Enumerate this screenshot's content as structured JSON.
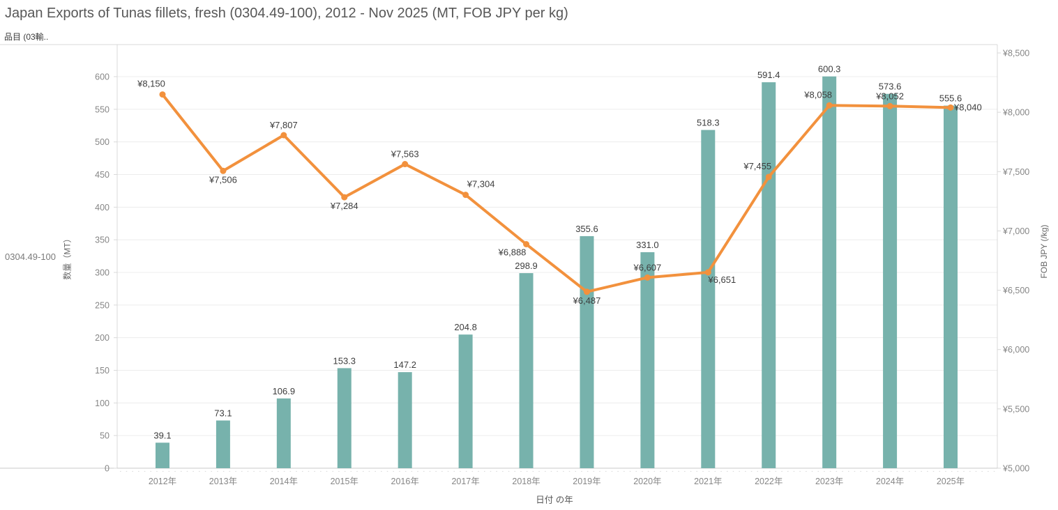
{
  "title": "Japan Exports of Tunas fillets, fresh (0304.49-100), 2012 - Nov 2025 (MT, FOB JPY per kg)",
  "field_header": "品目 (03輸..",
  "row_label": "0304.49-100",
  "axes": {
    "left_title": "数量（MT）",
    "right_title": "FOB JPY (/kg)",
    "x_title": "日付 の年"
  },
  "colors": {
    "bar": "#77b2ac",
    "line": "#f2913d",
    "grid": "#ececec",
    "axis_line": "#d9d9d9",
    "baseline": "#c9c9c9",
    "tick_text": "#868686",
    "label_text": "#3d3d3d"
  },
  "chart_data": {
    "type": "dual-axis bar+line",
    "categories": [
      "2012年",
      "2013年",
      "2014年",
      "2015年",
      "2016年",
      "2017年",
      "2018年",
      "2019年",
      "2020年",
      "2021年",
      "2022年",
      "2023年",
      "2024年",
      "2025年"
    ],
    "series": [
      {
        "name": "数量 (MT)",
        "type": "bar",
        "axis": "left",
        "values": [
          39.1,
          73.1,
          106.9,
          153.3,
          147.2,
          204.8,
          298.9,
          355.6,
          331.0,
          518.3,
          591.4,
          600.3,
          573.6,
          555.6
        ],
        "labels": [
          "39.1",
          "73.1",
          "106.9",
          "153.3",
          "147.2",
          "204.8",
          "298.9",
          "355.6",
          "331.0",
          "518.3",
          "591.4",
          "600.3",
          "573.6",
          "555.6"
        ]
      },
      {
        "name": "FOB JPY (/kg)",
        "type": "line",
        "axis": "right",
        "values": [
          8150,
          7506,
          7807,
          7284,
          7563,
          7304,
          6888,
          6487,
          6607,
          6651,
          7455,
          8058,
          8052,
          8040
        ],
        "labels": [
          "¥8,150",
          "¥7,506",
          "¥7,807",
          "¥7,284",
          "¥7,563",
          "¥7,304",
          "¥6,888",
          "¥6,487",
          "¥6,607",
          "¥6,651",
          "¥7,455",
          "¥8,058",
          "¥8,052",
          "¥8,040"
        ],
        "label_placements": [
          "above-left",
          "below",
          "above",
          "below",
          "above",
          "above-right",
          "below-left",
          "below",
          "above",
          "below-right",
          "above-left",
          "above-left",
          "above",
          "right"
        ]
      }
    ],
    "left_axis": {
      "ticks": [
        0,
        50,
        100,
        150,
        200,
        250,
        300,
        350,
        400,
        450,
        500,
        550,
        600
      ],
      "range": [
        0,
        650
      ]
    },
    "right_axis": {
      "ticks": [
        {
          "v": 5000,
          "label": "¥5,000"
        },
        {
          "v": 5500,
          "label": "¥5,500"
        },
        {
          "v": 6000,
          "label": "¥6,000"
        },
        {
          "v": 6500,
          "label": "¥6,500"
        },
        {
          "v": 7000,
          "label": "¥7,000"
        },
        {
          "v": 7500,
          "label": "¥7,500"
        },
        {
          "v": 8000,
          "label": "¥8,000"
        },
        {
          "v": 8500,
          "label": "¥8,500"
        }
      ],
      "range": [
        5000,
        8583
      ]
    },
    "grid": true,
    "legend_position": "none"
  }
}
